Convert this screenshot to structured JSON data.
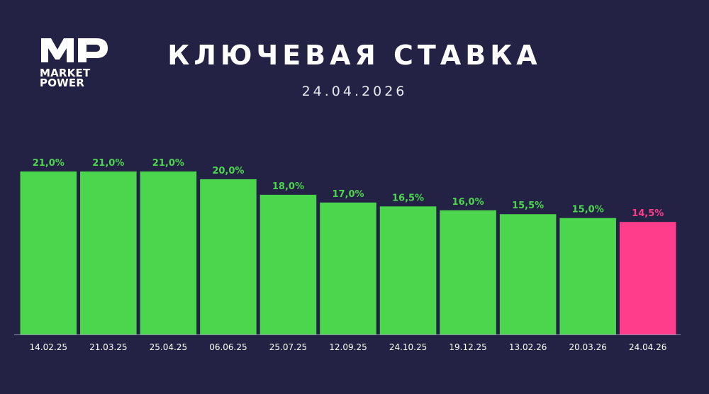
{
  "logo": {
    "mark": "MP",
    "line1": "MARKET",
    "line2": "POWER"
  },
  "header": {
    "title": "КЛЮЧЕВАЯ СТАВКА",
    "date": "24.04.2026"
  },
  "colors": {
    "background": "#232244",
    "bar": "#4cd64e",
    "highlight": "#ff3d8a",
    "axis": "#8f8fb0"
  },
  "chart_data": {
    "type": "bar",
    "title": "КЛЮЧЕВАЯ СТАВКА",
    "subtitle": "24.04.2026",
    "categories": [
      "14.02.25",
      "21.03.25",
      "25.04.25",
      "06.06.25",
      "25.07.25",
      "12.09.25",
      "24.10.25",
      "19.12.25",
      "13.02.26",
      "20.03.26",
      "24.04.26"
    ],
    "values": [
      21.0,
      21.0,
      21.0,
      20.0,
      18.0,
      17.0,
      16.5,
      16.0,
      15.5,
      15.0,
      14.5
    ],
    "value_labels": [
      "21,0%",
      "21,0%",
      "21,0%",
      "20,0%",
      "18,0%",
      "17,0%",
      "16,5%",
      "16,0%",
      "15,5%",
      "15,0%",
      "14,5%"
    ],
    "highlight_index": 10,
    "ylim": [
      0,
      21
    ],
    "grid": false,
    "legend": "none"
  }
}
